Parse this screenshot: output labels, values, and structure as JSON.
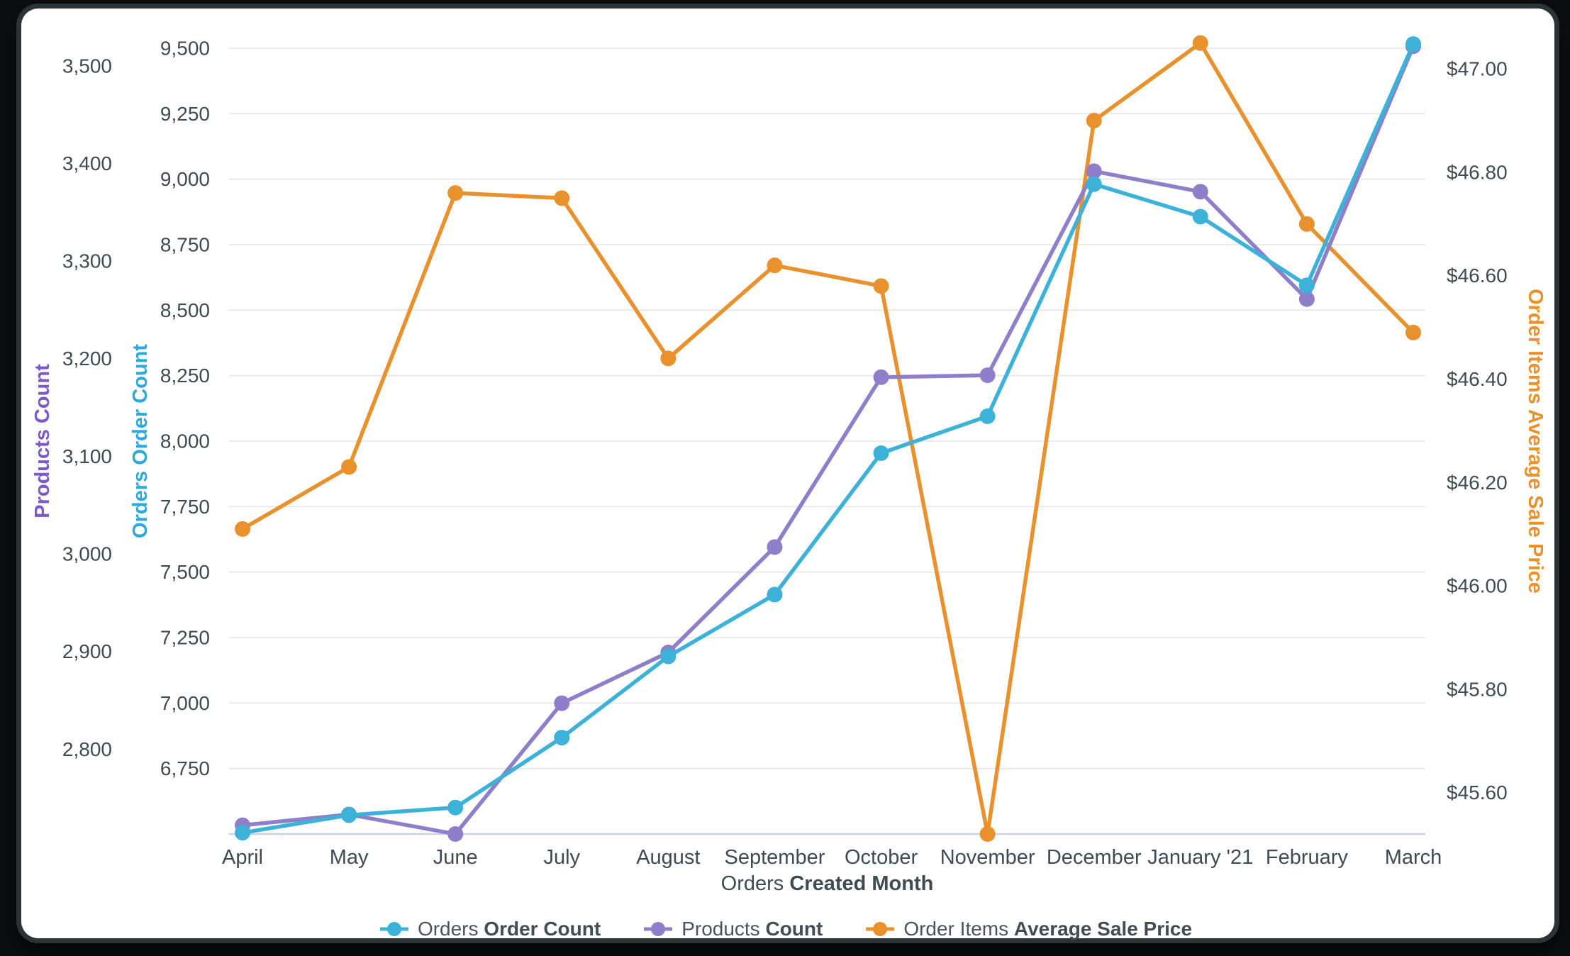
{
  "chart_data": {
    "type": "line",
    "x_axis_title": {
      "view": "Orders",
      "field": "Created Month"
    },
    "categories": [
      "April",
      "May",
      "June",
      "July",
      "August",
      "September",
      "October",
      "November",
      "December",
      "January '21",
      "February",
      "March"
    ],
    "series": [
      {
        "view": "Orders",
        "field": "Order Count",
        "axis": "orders",
        "color": "#3DB2D8",
        "values": [
          6505,
          6572,
          6601,
          6868,
          7178,
          7414,
          7954,
          8095,
          8981,
          8857,
          8595,
          9516
        ]
      },
      {
        "view": "Products",
        "field": "Count",
        "axis": "products",
        "color": "#8F7EC9",
        "values": [
          2722,
          2733,
          2713,
          2847,
          2899,
          3007,
          3181,
          3183,
          3392,
          3371,
          3261,
          3520
        ]
      },
      {
        "view": "Order Items",
        "field": "Average Sale Price",
        "axis": "price",
        "color": "#E8912D",
        "values": [
          46.11,
          46.23,
          46.76,
          46.75,
          46.44,
          46.62,
          46.58,
          45.52,
          46.9,
          47.05,
          46.7,
          46.49
        ]
      }
    ],
    "axes": {
      "products": {
        "label": "Products Count",
        "label_color": "#7C58C9",
        "min": 2713,
        "max": 3518,
        "ticks": [
          2800,
          2900,
          3000,
          3100,
          3200,
          3300,
          3400,
          3500
        ],
        "format": "number"
      },
      "orders": {
        "label": "Orders Order Count",
        "label_color": "#2EA9DE",
        "min": 6500,
        "max": 9500,
        "ticks": [
          6750,
          7000,
          7250,
          7500,
          7750,
          8000,
          8250,
          8500,
          8750,
          9000,
          9250,
          9500
        ],
        "format": "number"
      },
      "price": {
        "label": "Order Items Average Sale Price",
        "label_color": "#E8912D",
        "min": 45.52,
        "max": 47.04,
        "ticks": [
          45.6,
          45.8,
          46.0,
          46.2,
          46.4,
          46.6,
          46.8,
          47.0
        ],
        "format": "currency"
      }
    },
    "grid": {
      "line_color": "#e6e6e6",
      "baseline_color": "#c9d1e6",
      "tick_text_color": "#3f4b52"
    },
    "legend_position": "bottom-center"
  }
}
